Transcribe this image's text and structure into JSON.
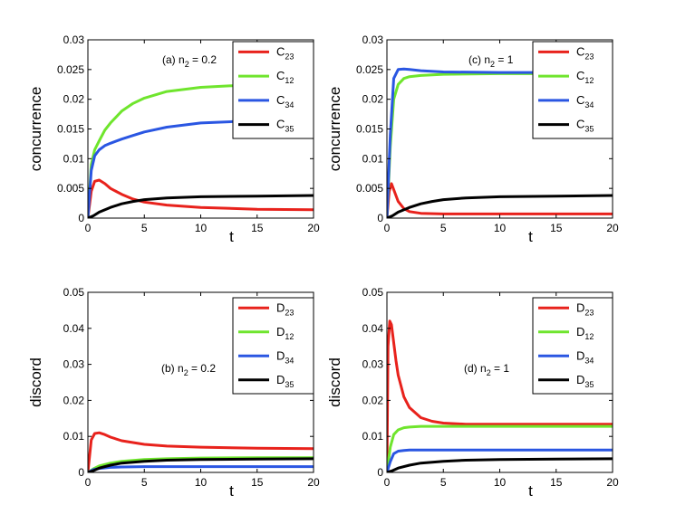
{
  "chart_data": [
    {
      "id": "a",
      "type": "line",
      "annotation": "(a) n",
      "annotation_sub": "2",
      "annotation_tail": " = 0.2",
      "xlabel": "t",
      "ylabel": "concurrence",
      "xlim": [
        0,
        20
      ],
      "ylim": [
        0,
        0.03
      ],
      "xticks": [
        "0",
        "5",
        "10",
        "15",
        "20"
      ],
      "yticks": [
        "0",
        "0.005",
        "0.01",
        "0.015",
        "0.02",
        "0.025",
        "0.03"
      ],
      "series": [
        {
          "name": "C",
          "sub": "23",
          "color": "#e8221c",
          "x": [
            0,
            0.3,
            0.6,
            1,
            1.5,
            2,
            3,
            4,
            5,
            7,
            10,
            15,
            20
          ],
          "y": [
            0,
            0.0045,
            0.0062,
            0.0064,
            0.0058,
            0.005,
            0.004,
            0.0032,
            0.0027,
            0.0022,
            0.0018,
            0.0015,
            0.0014
          ]
        },
        {
          "name": "C",
          "sub": "12",
          "color": "#6fe52d",
          "x": [
            0,
            0.3,
            0.6,
            1,
            1.5,
            2,
            3,
            4,
            5,
            7,
            10,
            15,
            20
          ],
          "y": [
            0,
            0.009,
            0.0115,
            0.013,
            0.0148,
            0.016,
            0.018,
            0.0193,
            0.0202,
            0.0213,
            0.022,
            0.0225,
            0.0226
          ]
        },
        {
          "name": "C",
          "sub": "34",
          "color": "#2a56e2",
          "x": [
            0,
            0.3,
            0.6,
            1,
            1.5,
            2,
            3,
            4,
            5,
            7,
            10,
            15,
            20
          ],
          "y": [
            0,
            0.008,
            0.0105,
            0.0115,
            0.0122,
            0.0126,
            0.0133,
            0.0139,
            0.0145,
            0.0153,
            0.016,
            0.0164,
            0.0165
          ]
        },
        {
          "name": "C",
          "sub": "35",
          "color": "#000000",
          "x": [
            0,
            0.5,
            1,
            2,
            3,
            4,
            5,
            7,
            10,
            15,
            20
          ],
          "y": [
            0,
            0.0004,
            0.001,
            0.0018,
            0.0024,
            0.0028,
            0.0031,
            0.0034,
            0.0036,
            0.0037,
            0.0038
          ]
        }
      ]
    },
    {
      "id": "c",
      "type": "line",
      "annotation": "(c) n",
      "annotation_sub": "2",
      "annotation_tail": " = 1",
      "xlabel": "t",
      "ylabel": "concurrence",
      "xlim": [
        0,
        20
      ],
      "ylim": [
        0,
        0.03
      ],
      "xticks": [
        "0",
        "5",
        "10",
        "15",
        "20"
      ],
      "yticks": [
        "0",
        "0.005",
        "0.01",
        "0.015",
        "0.02",
        "0.025",
        "0.03"
      ],
      "series": [
        {
          "name": "C",
          "sub": "23",
          "color": "#e8221c",
          "x": [
            0,
            0.2,
            0.4,
            0.6,
            1,
            1.5,
            2,
            3,
            5,
            10,
            20
          ],
          "y": [
            0,
            0.0045,
            0.0058,
            0.0048,
            0.0028,
            0.0016,
            0.0011,
            0.0008,
            0.0007,
            0.0007,
            0.0007
          ]
        },
        {
          "name": "C",
          "sub": "12",
          "color": "#6fe52d",
          "x": [
            0,
            0.3,
            0.6,
            1,
            1.5,
            2,
            3,
            5,
            10,
            20
          ],
          "y": [
            0,
            0.012,
            0.02,
            0.0225,
            0.0235,
            0.0238,
            0.024,
            0.0242,
            0.0243,
            0.0243
          ]
        },
        {
          "name": "C",
          "sub": "34",
          "color": "#2a56e2",
          "x": [
            0,
            0.3,
            0.6,
            1,
            1.5,
            2,
            3,
            5,
            10,
            20
          ],
          "y": [
            0,
            0.014,
            0.0235,
            0.025,
            0.0251,
            0.025,
            0.0248,
            0.0246,
            0.0245,
            0.0245
          ]
        },
        {
          "name": "C",
          "sub": "35",
          "color": "#000000",
          "x": [
            0,
            0.5,
            1,
            2,
            3,
            4,
            5,
            7,
            10,
            15,
            20
          ],
          "y": [
            0,
            0.0004,
            0.001,
            0.0018,
            0.0024,
            0.0028,
            0.0031,
            0.0034,
            0.0036,
            0.0037,
            0.0038
          ]
        }
      ]
    },
    {
      "id": "b",
      "type": "line",
      "annotation": "(b) n",
      "annotation_sub": "2",
      "annotation_tail": " = 0.2",
      "xlabel": "t",
      "ylabel": "discord",
      "xlim": [
        0,
        20
      ],
      "ylim": [
        0,
        0.05
      ],
      "xticks": [
        "0",
        "5",
        "10",
        "15",
        "20"
      ],
      "yticks": [
        "0",
        "0.01",
        "0.02",
        "0.03",
        "0.04",
        "0.05"
      ],
      "series": [
        {
          "name": "D",
          "sub": "23",
          "color": "#e8221c",
          "x": [
            0,
            0.3,
            0.6,
            1,
            1.5,
            2,
            3,
            5,
            7,
            10,
            15,
            20
          ],
          "y": [
            0,
            0.009,
            0.0108,
            0.011,
            0.0105,
            0.0098,
            0.0088,
            0.0078,
            0.0073,
            0.007,
            0.0067,
            0.0066
          ]
        },
        {
          "name": "D",
          "sub": "12",
          "color": "#6fe52d",
          "x": [
            0,
            0.5,
            1,
            2,
            3,
            5,
            7,
            10,
            15,
            20
          ],
          "y": [
            0,
            0.001,
            0.0018,
            0.0026,
            0.0031,
            0.0036,
            0.0038,
            0.004,
            0.0041,
            0.0041
          ]
        },
        {
          "name": "D",
          "sub": "34",
          "color": "#2a56e2",
          "x": [
            0,
            0.5,
            1,
            2,
            3,
            5,
            10,
            20
          ],
          "y": [
            0,
            0.0008,
            0.0011,
            0.0014,
            0.0015,
            0.0016,
            0.0016,
            0.0016
          ]
        },
        {
          "name": "D",
          "sub": "35",
          "color": "#000000",
          "x": [
            0,
            0.5,
            1,
            2,
            3,
            5,
            7,
            10,
            15,
            20
          ],
          "y": [
            0,
            0.0005,
            0.0012,
            0.002,
            0.0026,
            0.0031,
            0.0034,
            0.0036,
            0.0037,
            0.0038
          ]
        }
      ]
    },
    {
      "id": "d",
      "type": "line",
      "annotation": "(d) n",
      "annotation_sub": "2",
      "annotation_tail": " = 1",
      "xlabel": "t",
      "ylabel": "discord",
      "xlim": [
        0,
        20
      ],
      "ylim": [
        0,
        0.05
      ],
      "xticks": [
        "0",
        "5",
        "10",
        "15",
        "20"
      ],
      "yticks": [
        "0",
        "0.01",
        "0.02",
        "0.03",
        "0.04",
        "0.05"
      ],
      "series": [
        {
          "name": "D",
          "sub": "23",
          "color": "#e8221c",
          "x": [
            0,
            0.1,
            0.25,
            0.4,
            0.6,
            0.8,
            1,
            1.5,
            2,
            3,
            4,
            5,
            7,
            10,
            20
          ],
          "y": [
            0,
            0.035,
            0.042,
            0.041,
            0.036,
            0.031,
            0.027,
            0.021,
            0.018,
            0.0152,
            0.0142,
            0.0137,
            0.0134,
            0.0134,
            0.0134
          ]
        },
        {
          "name": "D",
          "sub": "12",
          "color": "#6fe52d",
          "x": [
            0,
            0.3,
            0.6,
            1,
            1.5,
            2,
            3,
            5,
            10,
            20
          ],
          "y": [
            0,
            0.007,
            0.0105,
            0.0118,
            0.0124,
            0.0126,
            0.0128,
            0.0128,
            0.0128,
            0.0128
          ]
        },
        {
          "name": "D",
          "sub": "34",
          "color": "#2a56e2",
          "x": [
            0,
            0.3,
            0.6,
            1,
            1.5,
            2,
            3,
            5,
            10,
            20
          ],
          "y": [
            0,
            0.003,
            0.0052,
            0.0059,
            0.0061,
            0.0062,
            0.0062,
            0.0062,
            0.0062,
            0.0062
          ]
        },
        {
          "name": "D",
          "sub": "35",
          "color": "#000000",
          "x": [
            0,
            0.5,
            1,
            2,
            3,
            5,
            7,
            10,
            15,
            20
          ],
          "y": [
            0,
            0.0005,
            0.0012,
            0.002,
            0.0026,
            0.0031,
            0.0034,
            0.0036,
            0.0037,
            0.0038
          ]
        }
      ]
    }
  ]
}
